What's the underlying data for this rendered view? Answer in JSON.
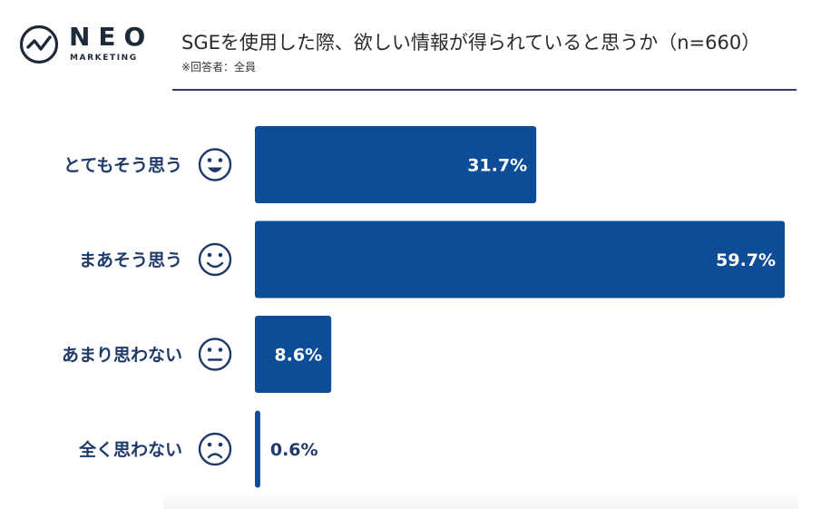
{
  "header": {
    "logo_name": "NEO",
    "logo_sub": "MARKETING",
    "title": "SGEを使用した際、欲しい情報が得られていると思うか（n=660）",
    "subtitle": "※回答者：全員"
  },
  "colors": {
    "bar": "#0d4d97",
    "text": "#1f3a6a",
    "rule": "#2d3a6b"
  },
  "chart_data": {
    "type": "bar",
    "orientation": "horizontal",
    "title": "SGEを使用した際、欲しい情報が得られていると思うか（n=660）",
    "categories": [
      "とてもそう思う",
      "まあそう思う",
      "あまり思わない",
      "全く思わない"
    ],
    "icons": [
      "big-smile-icon",
      "smile-icon",
      "neutral-face-icon",
      "frown-face-icon"
    ],
    "values": [
      31.7,
      59.7,
      8.6,
      0.6
    ],
    "labels": [
      "31.7%",
      "59.7%",
      "8.6%",
      "0.6%"
    ],
    "unit": "%",
    "xlim": [
      0,
      60
    ]
  }
}
